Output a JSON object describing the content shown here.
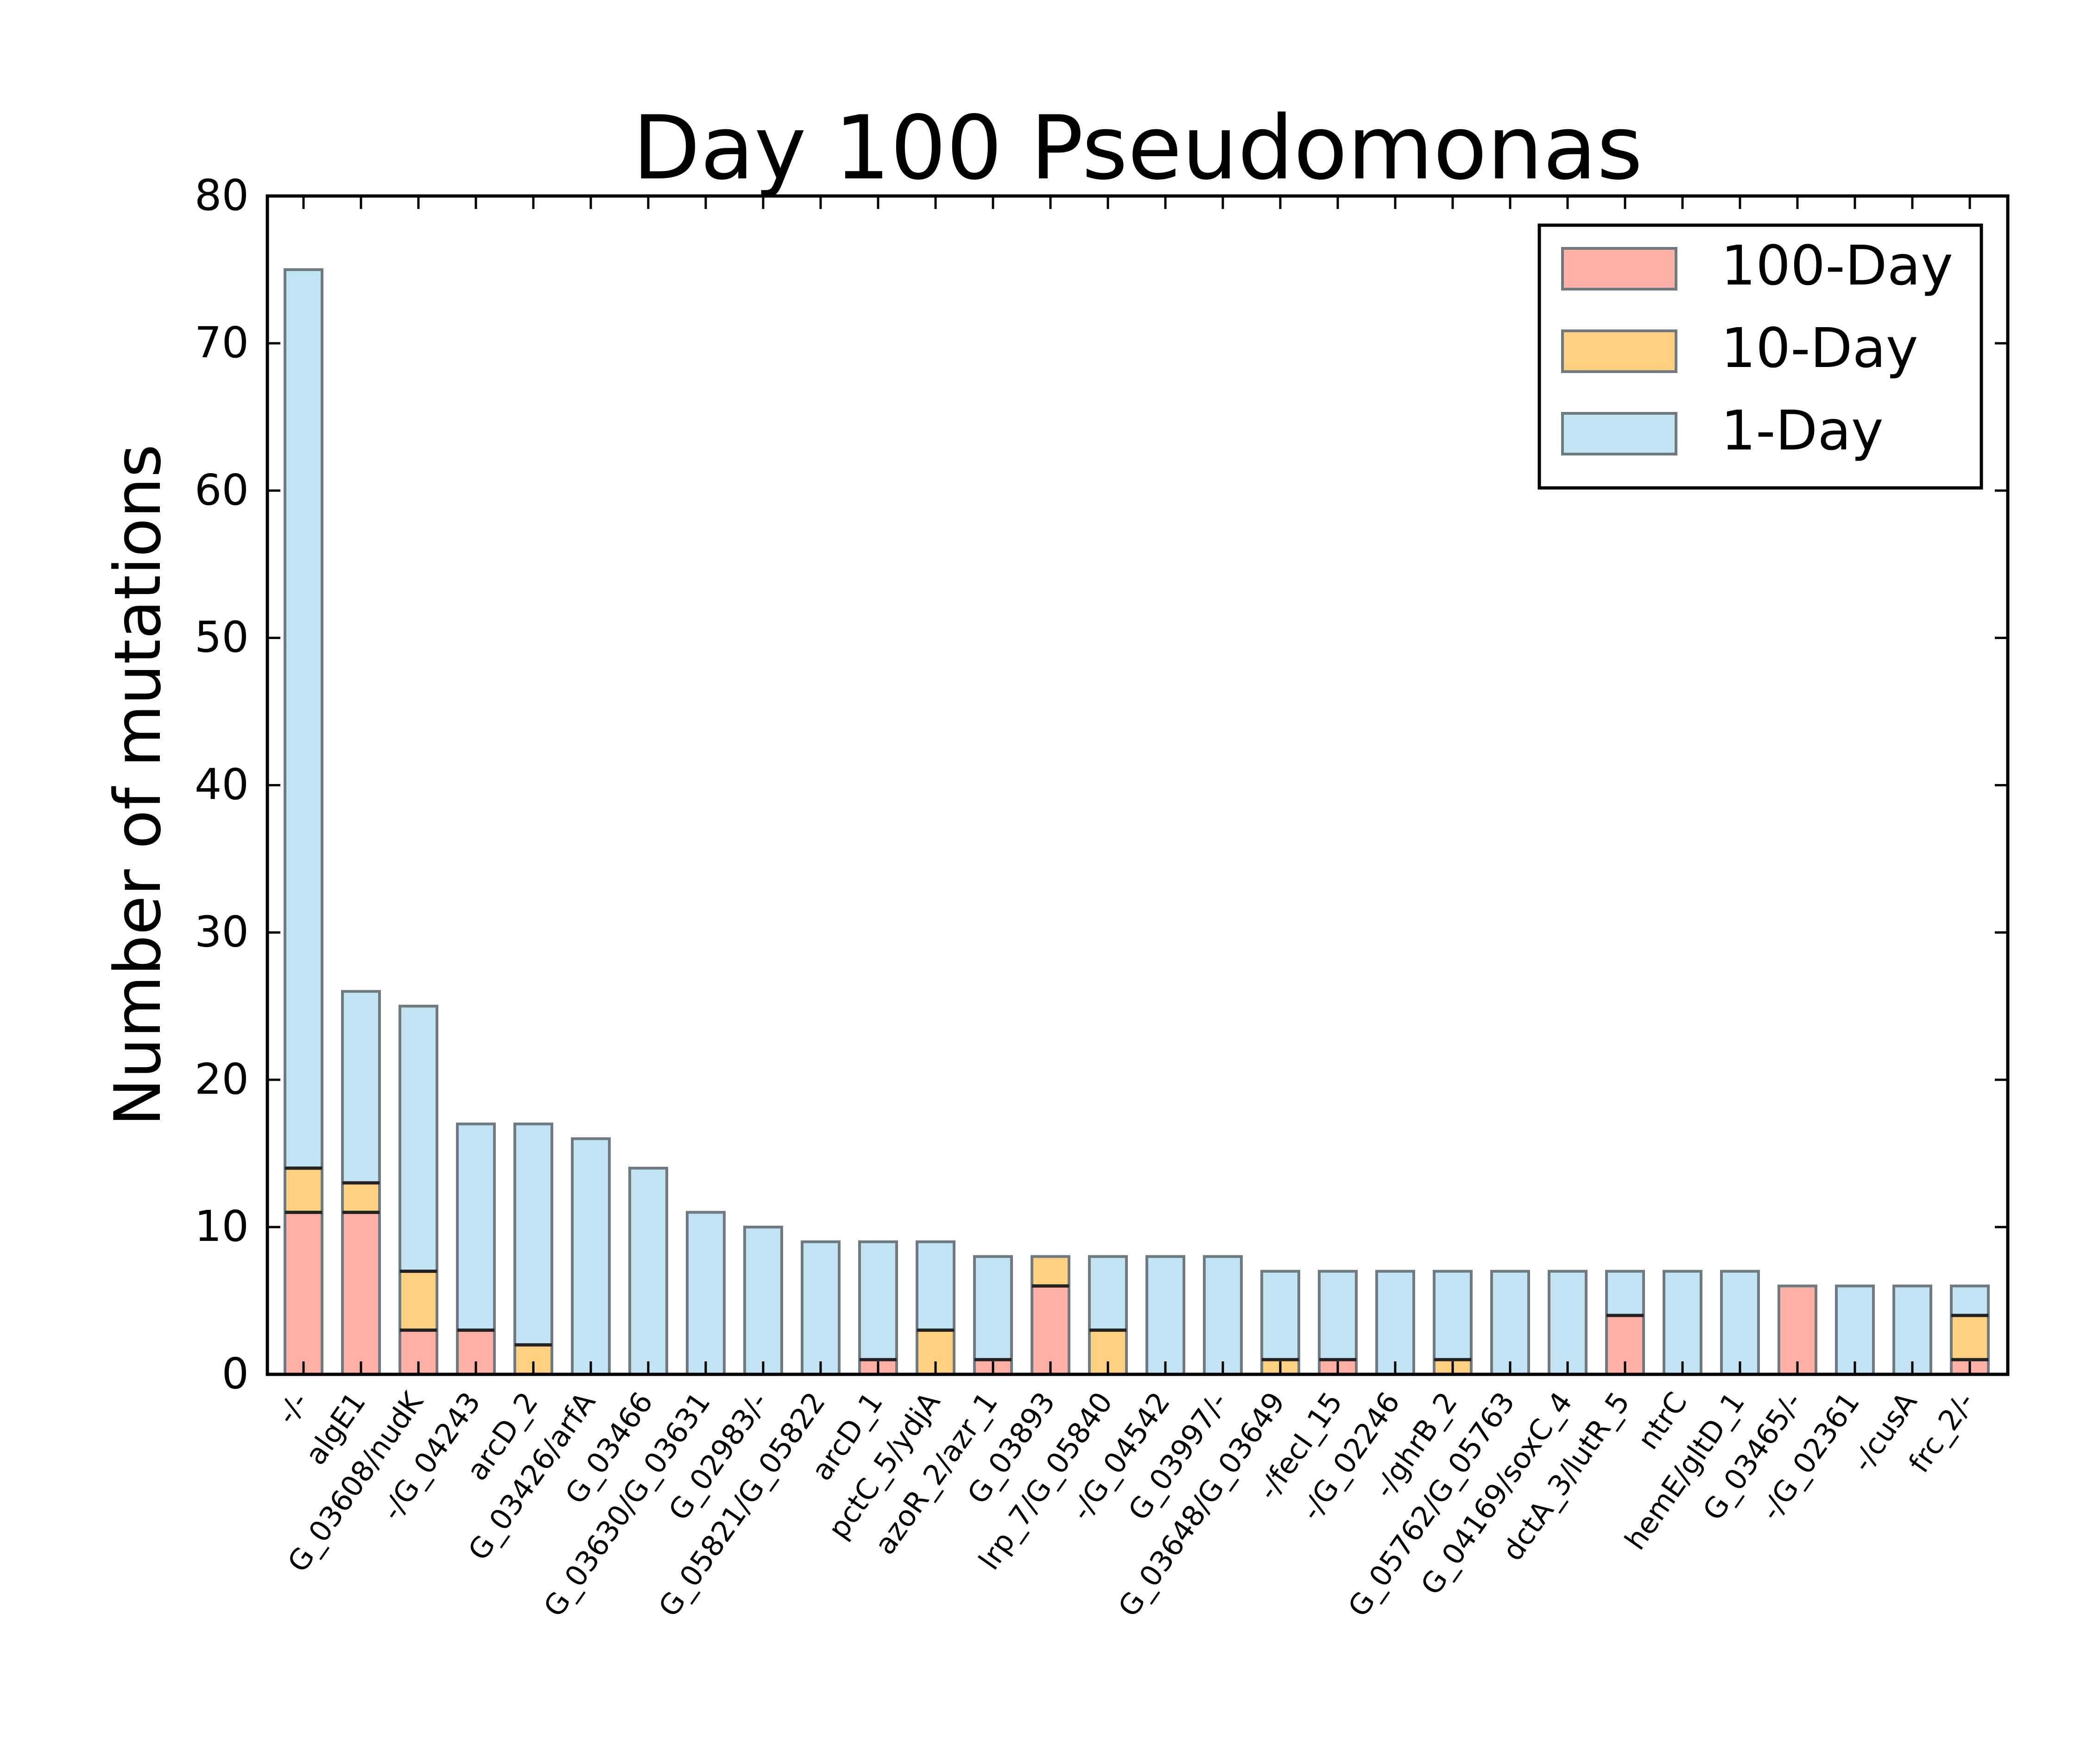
{
  "chart_data": {
    "type": "bar",
    "stacked": true,
    "title": "Day 100 Pseudomonas",
    "xlabel": "",
    "ylabel": "Number of mutations",
    "ylim": [
      0,
      80
    ],
    "yticks": [
      0,
      10,
      20,
      30,
      40,
      50,
      60,
      70,
      80
    ],
    "grid": false,
    "legend_position": "top-right",
    "categories": [
      "-/-",
      "algE1",
      "G_03608/nudK",
      "-/G_04243",
      "arcD_2",
      "G_03426/arfA",
      "G_03466",
      "G_03630/G_03631",
      "G_02983/-",
      "G_05821/G_05822",
      "arcD_1",
      "pctC_5/ydjA",
      "azoR_2/azr_1",
      "G_03893",
      "lrp_7/G_05840",
      "-/G_04542",
      "G_03997/-",
      "G_03648/G_03649",
      "-/fecI_15",
      "-/G_02246",
      "-/ghrB_2",
      "G_05762/G_05763",
      "G_04169/soxC_4",
      "dctA_3/lutR_5",
      "ntrC",
      "hemE/gltD_1",
      "G_03465/-",
      "-/G_02361",
      "-/cusA",
      "frc_2/-"
    ],
    "series": [
      {
        "name": "100-Day",
        "color": "#ffb0a5",
        "values": [
          11,
          11,
          3,
          3,
          0,
          0,
          0,
          0,
          0,
          0,
          1,
          0,
          1,
          6,
          0,
          0,
          0,
          0,
          1,
          0,
          0,
          0,
          0,
          4,
          0,
          0,
          6,
          0,
          0,
          1
        ]
      },
      {
        "name": "10-Day",
        "color": "#ffd080",
        "values": [
          3,
          2,
          4,
          0,
          2,
          0,
          0,
          0,
          0,
          0,
          0,
          3,
          0,
          2,
          3,
          0,
          0,
          1,
          0,
          0,
          1,
          0,
          0,
          0,
          0,
          0,
          0,
          0,
          0,
          3
        ]
      },
      {
        "name": "1-Day",
        "color": "#c2e4f2",
        "values": [
          61,
          13,
          18,
          14,
          15,
          16,
          14,
          11,
          10,
          9,
          8,
          6,
          7,
          0,
          5,
          8,
          8,
          6,
          6,
          7,
          6,
          7,
          7,
          3,
          7,
          7,
          0,
          6,
          6,
          2
        ]
      }
    ]
  }
}
